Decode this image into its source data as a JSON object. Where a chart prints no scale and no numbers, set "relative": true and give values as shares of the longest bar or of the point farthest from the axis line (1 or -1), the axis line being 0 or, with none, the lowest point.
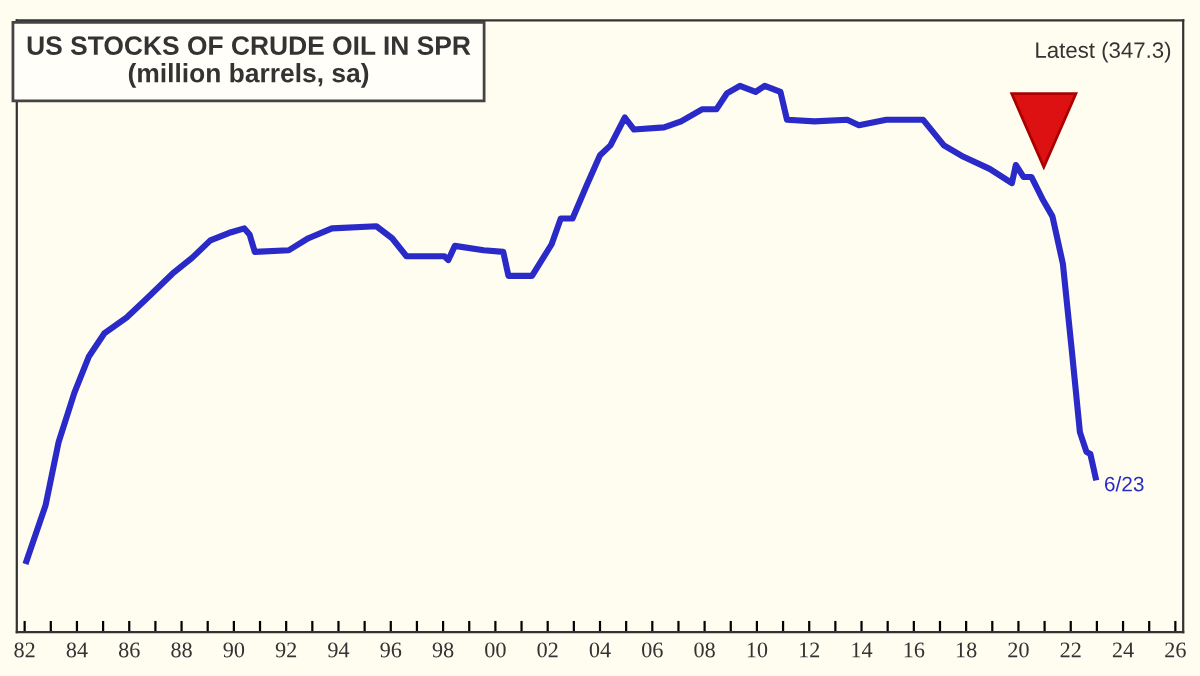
{
  "chart_data": {
    "type": "line",
    "title": "US STOCKS OF CRUDE OIL IN SPR",
    "subtitle": "(million barrels, sa)",
    "relative": true,
    "tick_labels": "x",
    "grid": false,
    "annotations": [
      "Latest (347.3)",
      {
        "text": "6/23",
        "x": 2022.95,
        "y": 0.283
      }
    ],
    "xlim": [
      1981.7,
      2026.3
    ],
    "xticks": [
      {
        "value": 1982,
        "label": "82"
      },
      {
        "value": 1983,
        "label": null
      },
      {
        "value": 1984,
        "label": "84"
      },
      {
        "value": 1985,
        "label": null
      },
      {
        "value": 1986,
        "label": "86"
      },
      {
        "value": 1987,
        "label": null
      },
      {
        "value": 1988,
        "label": "88"
      },
      {
        "value": 1989,
        "label": null
      },
      {
        "value": 1990,
        "label": "90"
      },
      {
        "value": 1991,
        "label": null
      },
      {
        "value": 1992,
        "label": "92"
      },
      {
        "value": 1993,
        "label": null
      },
      {
        "value": 1994,
        "label": "94"
      },
      {
        "value": 1995,
        "label": null
      },
      {
        "value": 1996,
        "label": "96"
      },
      {
        "value": 1997,
        "label": null
      },
      {
        "value": 1998,
        "label": "98"
      },
      {
        "value": 1999,
        "label": null
      },
      {
        "value": 2000,
        "label": "00"
      },
      {
        "value": 2001,
        "label": null
      },
      {
        "value": 2002,
        "label": "02"
      },
      {
        "value": 2003,
        "label": null
      },
      {
        "value": 2004,
        "label": "04"
      },
      {
        "value": 2005,
        "label": null
      },
      {
        "value": 2006,
        "label": "06"
      },
      {
        "value": 2007,
        "label": null
      },
      {
        "value": 2008,
        "label": "08"
      },
      {
        "value": 2009,
        "label": null
      },
      {
        "value": 2010,
        "label": "10"
      },
      {
        "value": 2011,
        "label": null
      },
      {
        "value": 2012,
        "label": "12"
      },
      {
        "value": 2013,
        "label": null
      },
      {
        "value": 2014,
        "label": "14"
      },
      {
        "value": 2015,
        "label": null
      },
      {
        "value": 2016,
        "label": "16"
      },
      {
        "value": 2017,
        "label": null
      },
      {
        "value": 2018,
        "label": "18"
      },
      {
        "value": 2019,
        "label": null
      },
      {
        "value": 2020,
        "label": "20"
      },
      {
        "value": 2021,
        "label": null
      },
      {
        "value": 2022,
        "label": "22"
      },
      {
        "value": 2023,
        "label": null
      },
      {
        "value": 2024,
        "label": "24"
      },
      {
        "value": 2025,
        "label": null
      },
      {
        "value": 2026,
        "label": "26"
      }
    ],
    "series": [
      {
        "color": "#2a2ac8",
        "line_style": "solid",
        "x": [
          1982.07,
          1982.8,
          1983.3,
          1983.9,
          1984.45,
          1985.05,
          1985.9,
          1986.7,
          1987.65,
          1988.4,
          1989.1,
          1989.9,
          1990.4,
          1990.6,
          1990.8,
          1992.1,
          1992.85,
          1993.75,
          1995.45,
          1996.05,
          1996.6,
          1998.05,
          1998.2,
          1998.45,
          1999.55,
          2000.3,
          2000.5,
          2001.4,
          2002.15,
          2002.5,
          2002.95,
          2003.5,
          2004.0,
          2004.4,
          2004.95,
          2005.3,
          2006.45,
          2007.1,
          2007.9,
          2008.45,
          2008.85,
          2009.35,
          2009.95,
          2010.3,
          2010.9,
          2011.15,
          2012.2,
          2013.45,
          2013.9,
          2014.95,
          2016.35,
          2017.15,
          2017.9,
          2018.9,
          2019.75,
          2019.9,
          2020.2,
          2020.5,
          2020.95,
          2021.3,
          2021.7,
          2022.05,
          2022.35,
          2022.6,
          2022.75,
          2022.95
        ],
        "values": [
          0.13,
          0.232,
          0.348,
          0.438,
          0.504,
          0.547,
          0.576,
          0.612,
          0.656,
          0.685,
          0.717,
          0.732,
          0.739,
          0.728,
          0.696,
          0.699,
          0.721,
          0.739,
          0.743,
          0.721,
          0.688,
          0.688,
          0.681,
          0.707,
          0.699,
          0.696,
          0.652,
          0.652,
          0.71,
          0.757,
          0.757,
          0.819,
          0.873,
          0.891,
          0.942,
          0.92,
          0.924,
          0.935,
          0.957,
          0.957,
          0.986,
          1.0,
          0.989,
          1.0,
          0.989,
          0.938,
          0.935,
          0.938,
          0.928,
          0.938,
          0.938,
          0.891,
          0.87,
          0.848,
          0.822,
          0.855,
          0.833,
          0.833,
          0.79,
          0.761,
          0.674,
          0.511,
          0.366,
          0.33,
          0.326,
          0.283
        ]
      }
    ]
  }
}
